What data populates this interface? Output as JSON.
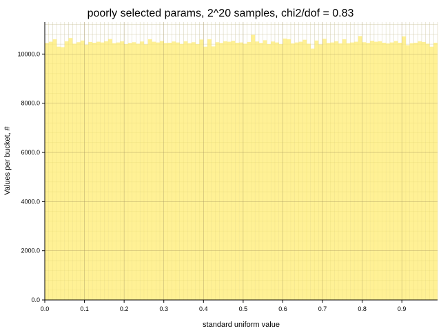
{
  "chart_data": {
    "type": "bar",
    "title": "poorly selected params, 2^20 samples, chi2/dof = 0.83",
    "xlabel": "standard uniform value",
    "ylabel": "Values per bucket, #",
    "xlim": [
      0.0,
      0.99
    ],
    "ylim": [
      0,
      11300
    ],
    "grid": true,
    "bar_color": "#fff08c",
    "bar_edge_color": "#f0dc78",
    "grid_color": "#c8c8c8",
    "xticks": [
      0.0,
      0.1,
      0.2,
      0.3,
      0.4,
      0.5,
      0.6,
      0.7,
      0.8,
      0.9
    ],
    "xtick_labels": [
      "0.0",
      "0.1",
      "0.2",
      "0.3",
      "0.4",
      "0.5",
      "0.6",
      "0.7",
      "0.8",
      "0.9"
    ],
    "yticks": [
      0,
      2000,
      4000,
      6000,
      8000,
      10000
    ],
    "ytick_labels": [
      "0.0",
      "2000.0",
      "4000.0",
      "6000.0",
      "8000.0",
      "10000.0"
    ],
    "bucket_width": 0.01,
    "values": [
      10450,
      10500,
      10600,
      10300,
      10280,
      10520,
      10650,
      10420,
      10480,
      10550,
      10380,
      10490,
      10460,
      10500,
      10470,
      10520,
      10610,
      10440,
      10470,
      10520,
      10400,
      10450,
      10480,
      10420,
      10510,
      10390,
      10600,
      10500,
      10470,
      10530,
      10450,
      10460,
      10510,
      10470,
      10410,
      10520,
      10440,
      10480,
      10400,
      10590,
      10300,
      10600,
      10310,
      10480,
      10450,
      10520,
      10500,
      10540,
      10460,
      10470,
      10420,
      10490,
      10780,
      10510,
      10450,
      10560,
      10400,
      10510,
      10470,
      10400,
      10630,
      10600,
      10430,
      10470,
      10500,
      10580,
      10420,
      10220,
      10550,
      10390,
      10620,
      10450,
      10470,
      10520,
      10430,
      10600,
      10440,
      10470,
      10500,
      10730,
      10480,
      10450,
      10540,
      10500,
      10520,
      10460,
      10430,
      10470,
      10530,
      10460,
      10720,
      10360,
      10440,
      10460,
      10520,
      10490,
      10420,
      10300,
      10460
    ]
  }
}
